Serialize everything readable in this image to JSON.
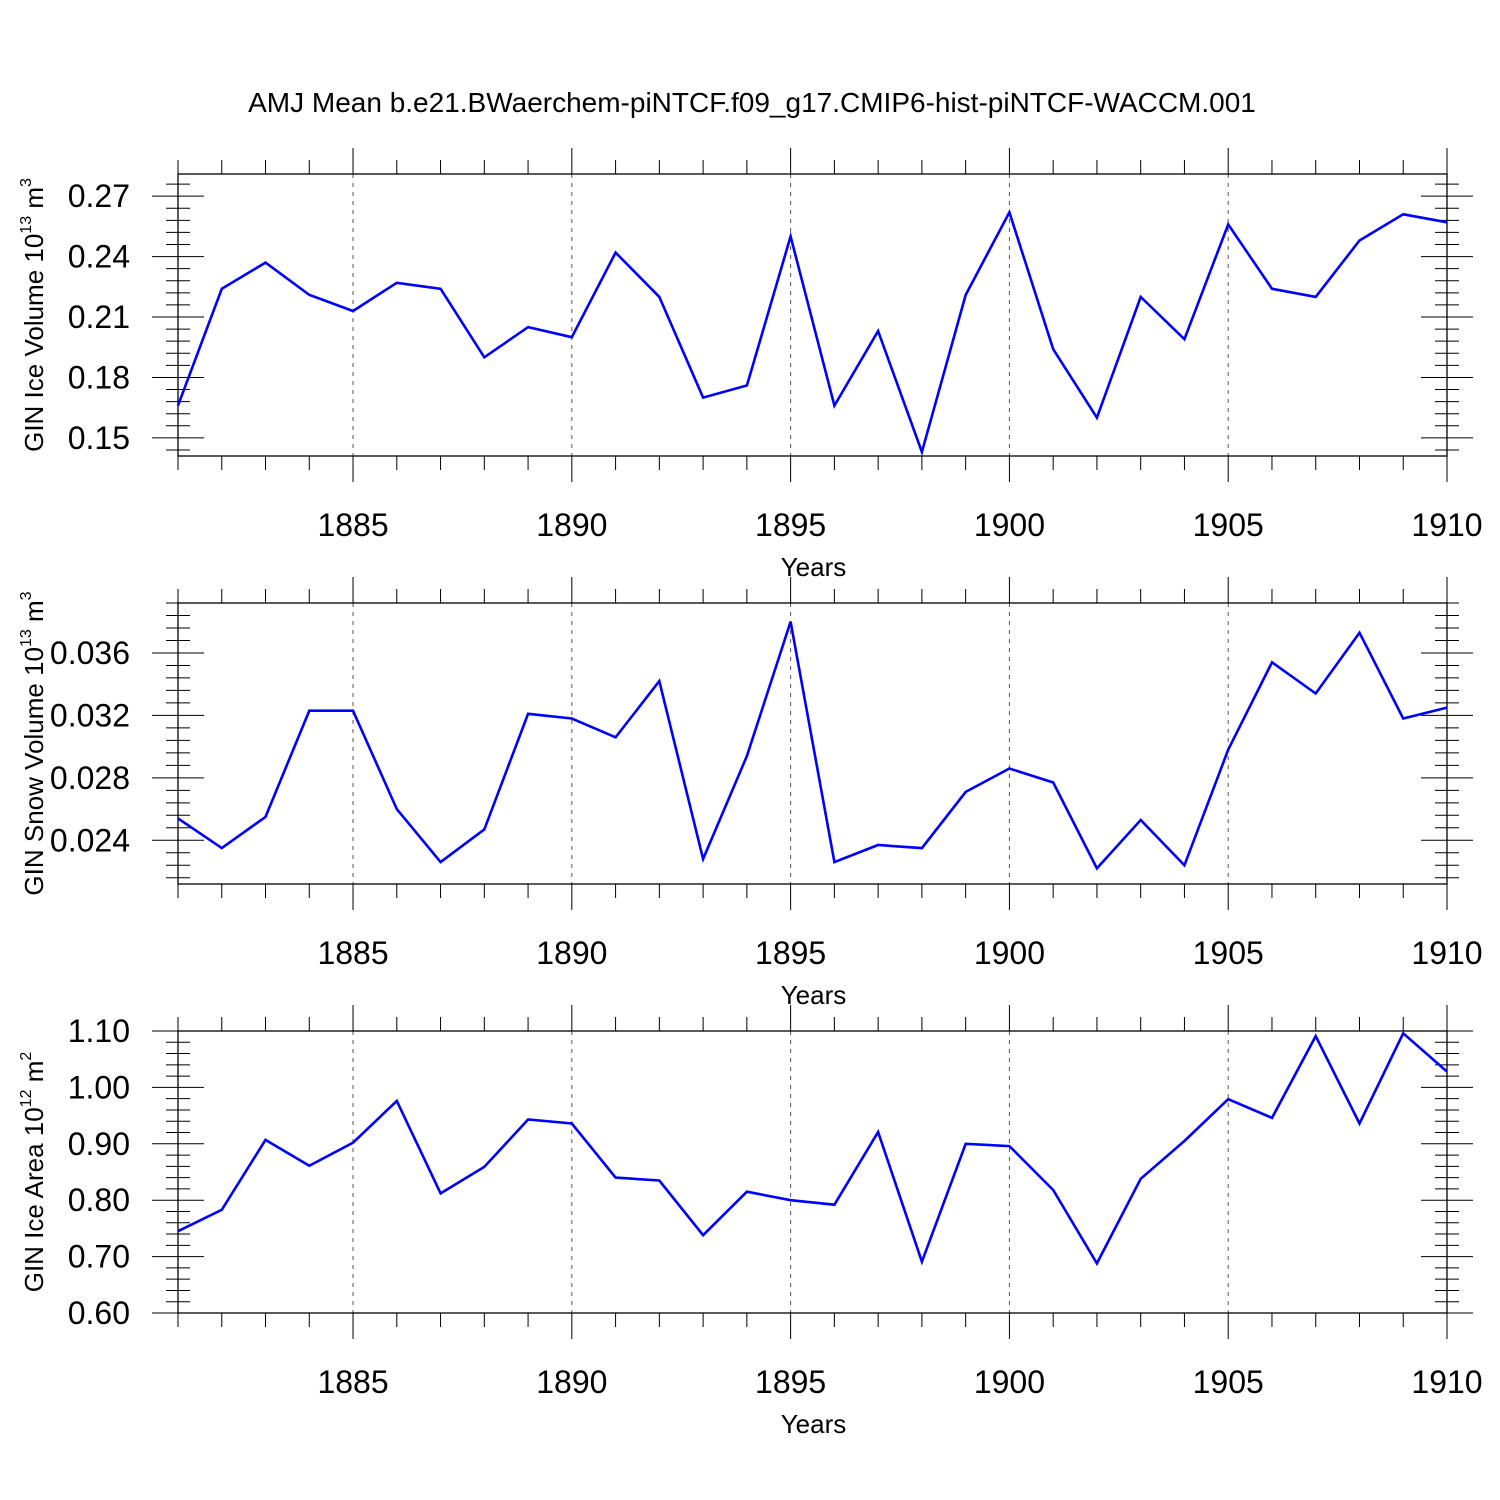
{
  "figure": {
    "title": "AMJ Mean b.e21.BWaerchem-piNTCF.f09_g17.CMIP6-hist-piNTCF-WACCM.001"
  },
  "colors": {
    "line": "#0000ff",
    "axis": "#000000",
    "grid": "#555555"
  },
  "chart_data": [
    {
      "type": "line",
      "title": "",
      "xlabel": "Years",
      "ylabel": "GIN Ice Volume 10",
      "ylabel_exp": "13",
      "ylabel_unit": "m",
      "ylabel_unit_exp": "3",
      "xlim": [
        1881,
        1910
      ],
      "ylim": [
        0.141,
        0.281
      ],
      "xticks": [
        1885,
        1890,
        1895,
        1900,
        1905,
        1910
      ],
      "yticks": [
        0.15,
        0.18,
        0.21,
        0.24,
        0.27
      ],
      "ytick_labels": [
        "0.15",
        "0.18",
        "0.21",
        "0.24",
        "0.27"
      ],
      "grid": "vertical dashed at major x ticks",
      "x": [
        1881,
        1882,
        1883,
        1884,
        1885,
        1886,
        1887,
        1888,
        1889,
        1890,
        1891,
        1892,
        1893,
        1894,
        1895,
        1896,
        1897,
        1898,
        1899,
        1900,
        1901,
        1902,
        1903,
        1904,
        1905,
        1906,
        1907,
        1908,
        1909,
        1910
      ],
      "series": [
        {
          "values": [
            0.166,
            0.224,
            0.237,
            0.221,
            0.213,
            0.227,
            0.224,
            0.19,
            0.205,
            0.2,
            0.242,
            0.22,
            0.17,
            0.176,
            0.25,
            0.166,
            0.203,
            0.143,
            0.221,
            0.262,
            0.194,
            0.16,
            0.22,
            0.199,
            0.256,
            0.224,
            0.22,
            0.248,
            0.261,
            0.257
          ]
        }
      ]
    },
    {
      "type": "line",
      "title": "",
      "xlabel": "Years",
      "ylabel": "GIN Snow Volume 10",
      "ylabel_exp": "13",
      "ylabel_unit": "m",
      "ylabel_unit_exp": "3",
      "xlim": [
        1881,
        1910
      ],
      "ylim": [
        0.0212,
        0.0392
      ],
      "xticks": [
        1885,
        1890,
        1895,
        1900,
        1905,
        1910
      ],
      "yticks": [
        0.024,
        0.028,
        0.032,
        0.036
      ],
      "ytick_labels": [
        "0.024",
        "0.028",
        "0.032",
        "0.036"
      ],
      "grid": "vertical dashed at major x ticks",
      "x": [
        1881,
        1882,
        1883,
        1884,
        1885,
        1886,
        1887,
        1888,
        1889,
        1890,
        1891,
        1892,
        1893,
        1894,
        1895,
        1896,
        1897,
        1898,
        1899,
        1900,
        1901,
        1902,
        1903,
        1904,
        1905,
        1906,
        1907,
        1908,
        1909,
        1910
      ],
      "series": [
        {
          "values": [
            0.0254,
            0.0235,
            0.0255,
            0.0323,
            0.0323,
            0.026,
            0.0226,
            0.0247,
            0.0321,
            0.0318,
            0.0306,
            0.0342,
            0.0228,
            0.0294,
            0.038,
            0.0226,
            0.0237,
            0.0235,
            0.0271,
            0.0286,
            0.0277,
            0.0222,
            0.0253,
            0.0224,
            0.0298,
            0.0354,
            0.0334,
            0.0373,
            0.0318,
            0.0325
          ]
        }
      ]
    },
    {
      "type": "line",
      "title": "",
      "xlabel": "Years",
      "ylabel": "GIN Ice Area 10",
      "ylabel_exp": "12",
      "ylabel_unit": "m",
      "ylabel_unit_exp": "2",
      "xlim": [
        1881,
        1910
      ],
      "ylim": [
        0.6,
        1.1
      ],
      "xticks": [
        1885,
        1890,
        1895,
        1900,
        1905,
        1910
      ],
      "yticks": [
        0.6,
        0.7,
        0.8,
        0.9,
        1.0,
        1.1
      ],
      "ytick_labels": [
        "0.60",
        "0.70",
        "0.80",
        "0.90",
        "1.00",
        "1.10"
      ],
      "grid": "vertical dashed at major x ticks",
      "x": [
        1881,
        1882,
        1883,
        1884,
        1885,
        1886,
        1887,
        1888,
        1889,
        1890,
        1891,
        1892,
        1893,
        1894,
        1895,
        1896,
        1897,
        1898,
        1899,
        1900,
        1901,
        1902,
        1903,
        1904,
        1905,
        1906,
        1907,
        1908,
        1909,
        1910
      ],
      "series": [
        {
          "values": [
            0.745,
            0.783,
            0.907,
            0.861,
            0.902,
            0.976,
            0.812,
            0.859,
            0.943,
            0.936,
            0.84,
            0.835,
            0.738,
            0.815,
            0.8,
            0.792,
            0.921,
            0.691,
            0.9,
            0.896,
            0.818,
            0.688,
            0.838,
            0.905,
            0.979,
            0.946,
            1.091,
            0.936,
            1.096,
            1.028
          ]
        }
      ]
    }
  ]
}
